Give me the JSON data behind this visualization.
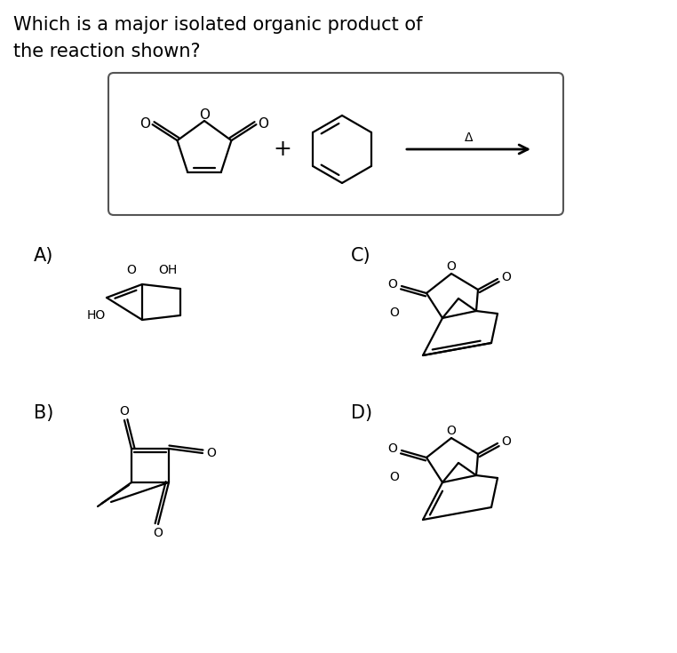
{
  "title_line1": "Which is a major isolated organic product of",
  "title_line2": "the reaction shown?",
  "bg_color": "#ffffff",
  "text_color": "#000000",
  "label_A": "A)",
  "label_B": "B)",
  "label_C": "C)",
  "label_D": "D)",
  "figsize": [
    7.62,
    7.35
  ],
  "dpi": 100
}
